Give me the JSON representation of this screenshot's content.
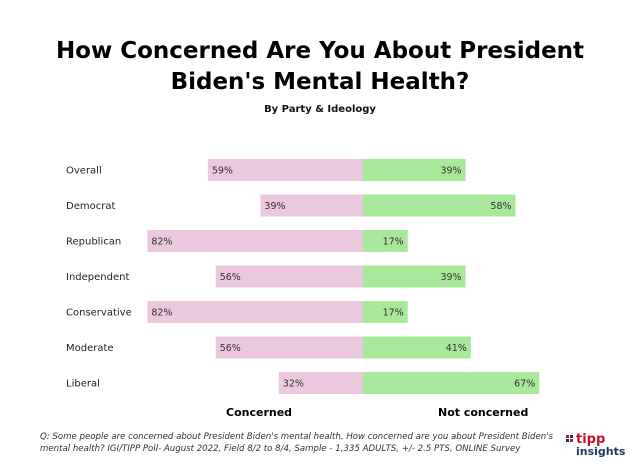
{
  "title_line1": "How Concerned Are You About President",
  "title_line2": "Biden's Mental Health?",
  "subtitle": "By Party & Ideology",
  "legend": {
    "left": "Concerned",
    "right": "Not concerned"
  },
  "footnote": "Q: Some people are concerned about President Biden's mental health. How concerned are you about President Biden's mental health? IGI/TIPP Poll- August 2022, Field 8/2 to 8/4, Sample - 1,335 ADULTS, +/- 2.5 PTS, ONLINE Survey",
  "logo": {
    "line1": "tipp",
    "line2": "insights"
  },
  "colors": {
    "concerned": "#ecc8df",
    "not_concerned": "#a7e89a"
  },
  "chart_data": {
    "type": "bar",
    "orientation": "horizontal-diverging",
    "title": "How Concerned Are You About President Biden's Mental Health?",
    "subtitle": "By Party & Ideology",
    "categories": [
      "Overall",
      "Democrat",
      "Republican",
      "Independent",
      "Conservative",
      "Moderate",
      "Liberal"
    ],
    "series": [
      {
        "name": "Concerned",
        "values": [
          59,
          39,
          82,
          56,
          82,
          56,
          32
        ],
        "labels": [
          "59%",
          "39%",
          "82%",
          "56%",
          "82%",
          "56%",
          "32%"
        ]
      },
      {
        "name": "Not concerned",
        "values": [
          39,
          58,
          17,
          39,
          17,
          41,
          67
        ],
        "labels": [
          "39%",
          "58%",
          "17%",
          "39%",
          "17%",
          "41%",
          "67%"
        ]
      }
    ],
    "grid": false,
    "legend": "bottom"
  }
}
